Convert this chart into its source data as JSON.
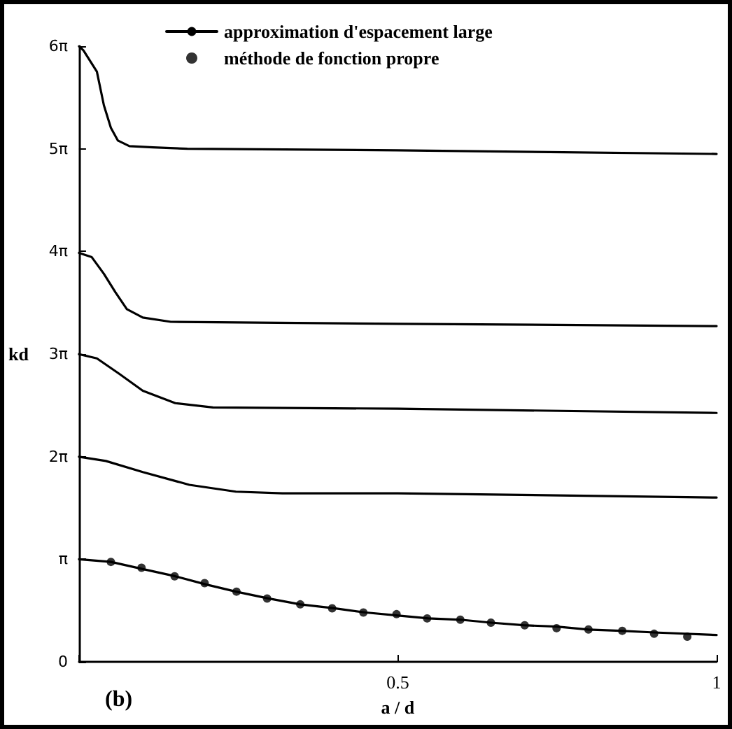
{
  "chart_data": {
    "type": "line",
    "xlabel": "a / d",
    "ylabel": "kd",
    "annotations": [
      "(b)"
    ],
    "xlim": [
      0,
      1
    ],
    "xticks": [
      {
        "value": 0,
        "label": null
      },
      0.5,
      1
    ],
    "ylim": [
      0,
      18.85
    ],
    "yticks": [
      0,
      {
        "value": 3.1416,
        "label": "π"
      },
      {
        "value": 6.2832,
        "label": "2π"
      },
      {
        "value": 9.4248,
        "label": "3π"
      },
      {
        "value": 12.5664,
        "label": "4π"
      },
      {
        "value": 15.708,
        "label": "5π"
      },
      {
        "value": 18.8496,
        "label": "6π"
      }
    ],
    "grid": false,
    "legend": "top",
    "line_style": "solid",
    "series": [
      {
        "name": "approximation d'espacement large",
        "color": "#000000",
        "marker": "none",
        "x": [
          0,
          0.05,
          0.1,
          0.151,
          0.199,
          0.246,
          0.297,
          0.347,
          0.4,
          0.45,
          0.498,
          0.548,
          0.598,
          0.646,
          0.697,
          0.749,
          0.799,
          0.849,
          0.902,
          1.0
        ],
        "values": [
          3.14,
          3.06,
          2.84,
          2.62,
          2.37,
          2.15,
          1.94,
          1.76,
          1.64,
          1.51,
          1.42,
          1.33,
          1.29,
          1.2,
          1.12,
          1.08,
          0.99,
          0.95,
          0.9,
          0.82
        ]
      },
      {
        "color": "#000000",
        "marker": "none",
        "x": [
          0,
          0.042,
          0.1,
          0.173,
          0.246,
          0.319,
          0.5,
          1.0
        ],
        "values": [
          6.28,
          6.15,
          5.81,
          5.42,
          5.21,
          5.16,
          5.16,
          5.03
        ]
      },
      {
        "color": "#000000",
        "marker": "none",
        "x": [
          0,
          0.028,
          0.063,
          0.1,
          0.151,
          0.21,
          0.5,
          1.0
        ],
        "values": [
          9.42,
          9.29,
          8.82,
          8.3,
          7.92,
          7.79,
          7.75,
          7.62
        ]
      },
      {
        "color": "#000000",
        "marker": "none",
        "x": [
          0,
          0.02,
          0.039,
          0.057,
          0.075,
          0.1,
          0.144,
          0.5,
          1.0
        ],
        "values": [
          12.52,
          12.39,
          11.88,
          11.32,
          10.8,
          10.54,
          10.41,
          10.35,
          10.28
        ]
      },
      {
        "color": "#000000",
        "marker": "none",
        "x": [
          0,
          0.007,
          0.028,
          0.039,
          0.05,
          0.061,
          0.079,
          0.116,
          0.17,
          0.5,
          1.0
        ],
        "values": [
          18.85,
          18.72,
          18.07,
          17.04,
          16.35,
          15.96,
          15.79,
          15.75,
          15.71,
          15.66,
          15.55
        ]
      },
      {
        "name": "méthode de fonction propre",
        "type": "scatter",
        "color": "#000000",
        "marker": "circle",
        "x": [
          0.05,
          0.098,
          0.15,
          0.197,
          0.247,
          0.295,
          0.347,
          0.397,
          0.446,
          0.498,
          0.546,
          0.598,
          0.646,
          0.699,
          0.749,
          0.799,
          0.852,
          0.902,
          0.954
        ],
        "values": [
          3.06,
          2.88,
          2.62,
          2.41,
          2.15,
          1.94,
          1.76,
          1.64,
          1.51,
          1.46,
          1.33,
          1.29,
          1.2,
          1.12,
          1.03,
          0.99,
          0.95,
          0.86,
          0.77
        ]
      }
    ]
  }
}
